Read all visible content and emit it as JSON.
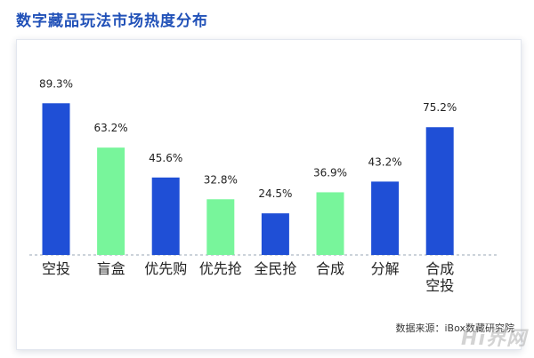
{
  "title": "数字藏品玩法市场热度分布",
  "source": "数据来源：iBox数藏研究院",
  "watermark": "Hi界网",
  "colors": {
    "blue": "#1f4fd6",
    "green": "#78f59b",
    "baseline": "#9aa7b4",
    "label": "#222222"
  },
  "chart_data": {
    "type": "bar",
    "title": "数字藏品玩法市场热度分布",
    "xlabel": "",
    "ylabel": "",
    "ylim": [
      0,
      100
    ],
    "grid": false,
    "legend": "none",
    "categories": [
      [
        "空投"
      ],
      [
        "盲盒"
      ],
      [
        "优先购"
      ],
      [
        "优先抢"
      ],
      [
        "全民抢"
      ],
      [
        "合成"
      ],
      [
        "分解"
      ],
      [
        "合成",
        "空投"
      ]
    ],
    "values": [
      89.3,
      63.2,
      45.6,
      32.8,
      24.5,
      36.9,
      43.2,
      75.2
    ],
    "value_labels": [
      "89.3%",
      "63.2%",
      "45.6%",
      "32.8%",
      "24.5%",
      "36.9%",
      "43.2%",
      "75.2%"
    ],
    "bar_colors": [
      "#1f4fd6",
      "#78f59b",
      "#1f4fd6",
      "#78f59b",
      "#1f4fd6",
      "#78f59b",
      "#1f4fd6",
      "#1f4fd6"
    ]
  }
}
